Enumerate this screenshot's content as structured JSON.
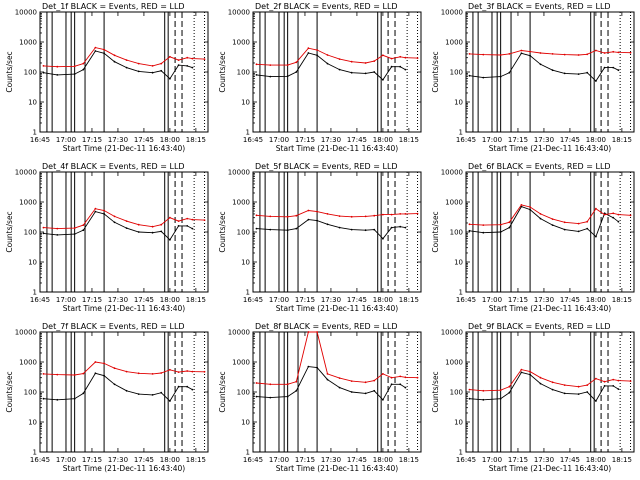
{
  "chart_data": [
    {
      "type": "line",
      "title": "Det_1f BLACK = Events, RED = LLD",
      "xlabel": "Start Time (21-Dec-11 16:43:40)",
      "ylabel": "Counts/sec",
      "yscale": "log",
      "ylim": [
        1,
        10000
      ],
      "xlim": [
        "16:45",
        "18:22"
      ],
      "xticks": [
        "16:45",
        "17:00",
        "17:15",
        "17:30",
        "17:45",
        "18:00",
        "18:15"
      ],
      "yticks": [
        "1",
        "10",
        "100",
        "1000",
        "10000"
      ],
      "series": [
        {
          "color": "#000000",
          "x": [
            "16:47",
            "16:55",
            "17:05",
            "17:10",
            "17:17",
            "17:22",
            "17:28",
            "17:35",
            "17:42",
            "17:50",
            "17:55",
            "18:00",
            "18:05",
            "18:10",
            "18:13"
          ],
          "y": [
            95,
            80,
            85,
            120,
            500,
            420,
            220,
            140,
            105,
            95,
            110,
            60,
            170,
            160,
            140
          ]
        },
        {
          "color": "#e00000",
          "x": [
            "16:47",
            "16:55",
            "17:05",
            "17:10",
            "17:17",
            "17:22",
            "17:28",
            "17:35",
            "17:42",
            "17:50",
            "17:55",
            "18:00",
            "18:05",
            "18:10",
            "18:13",
            "18:20"
          ],
          "y": [
            160,
            150,
            155,
            190,
            650,
            560,
            360,
            250,
            190,
            160,
            190,
            320,
            250,
            300,
            280,
            270
          ]
        }
      ]
    },
    {
      "type": "line",
      "title": "Det_2f BLACK = Events, RED = LLD",
      "xlabel": "Start Time (21-Dec-11 16:43:40)",
      "ylabel": "Counts/sec",
      "yscale": "log",
      "ylim": [
        1,
        10000
      ],
      "xlim": [
        "16:45",
        "18:22"
      ],
      "xticks": [
        "16:45",
        "17:00",
        "17:15",
        "17:30",
        "17:45",
        "18:00",
        "18:15"
      ],
      "yticks": [
        "1",
        "10",
        "100",
        "1000",
        "10000"
      ],
      "series": [
        {
          "color": "#000000",
          "x": [
            "16:47",
            "16:55",
            "17:05",
            "17:10",
            "17:17",
            "17:22",
            "17:28",
            "17:35",
            "17:42",
            "17:50",
            "17:55",
            "18:00",
            "18:05",
            "18:10",
            "18:13"
          ],
          "y": [
            80,
            70,
            72,
            100,
            430,
            360,
            190,
            120,
            95,
            90,
            100,
            55,
            150,
            150,
            120
          ]
        },
        {
          "color": "#e00000",
          "x": [
            "16:47",
            "16:55",
            "17:05",
            "17:10",
            "17:17",
            "17:22",
            "17:28",
            "17:35",
            "17:42",
            "17:50",
            "17:55",
            "18:00",
            "18:05",
            "18:10",
            "18:13",
            "18:20"
          ],
          "y": [
            180,
            170,
            170,
            210,
            620,
            540,
            370,
            270,
            220,
            200,
            230,
            360,
            280,
            320,
            300,
            290
          ]
        }
      ]
    },
    {
      "type": "line",
      "title": "Det_3f BLACK = Events, RED = LLD",
      "xlabel": "Start Time (21-Dec-11 16:43:40)",
      "ylabel": "Counts/sec",
      "yscale": "log",
      "ylim": [
        1,
        10000
      ],
      "xlim": [
        "16:45",
        "18:22"
      ],
      "xticks": [
        "16:45",
        "17:00",
        "17:15",
        "17:30",
        "17:45",
        "18:00",
        "18:15"
      ],
      "yticks": [
        "1",
        "10",
        "100",
        "1000",
        "10000"
      ],
      "series": [
        {
          "color": "#000000",
          "x": [
            "16:47",
            "16:55",
            "17:05",
            "17:10",
            "17:17",
            "17:22",
            "17:28",
            "17:35",
            "17:42",
            "17:50",
            "17:55",
            "18:00",
            "18:05",
            "18:10",
            "18:13"
          ],
          "y": [
            75,
            65,
            70,
            95,
            420,
            350,
            180,
            115,
            90,
            85,
            95,
            50,
            140,
            140,
            115
          ]
        },
        {
          "color": "#e00000",
          "x": [
            "16:47",
            "16:55",
            "17:05",
            "17:10",
            "17:17",
            "17:22",
            "17:28",
            "17:35",
            "17:42",
            "17:50",
            "17:55",
            "18:00",
            "18:05",
            "18:10",
            "18:13",
            "18:20"
          ],
          "y": [
            400,
            380,
            370,
            400,
            520,
            480,
            430,
            400,
            380,
            370,
            390,
            520,
            430,
            470,
            450,
            440
          ]
        }
      ]
    },
    {
      "type": "line",
      "title": "Det_4f BLACK = Events, RED = LLD",
      "xlabel": "Start Time (21-Dec-11 16:43:40)",
      "ylabel": "Counts/sec",
      "yscale": "log",
      "ylim": [
        1,
        10000
      ],
      "xlim": [
        "16:45",
        "18:22"
      ],
      "xticks": [
        "16:45",
        "17:00",
        "17:15",
        "17:30",
        "17:45",
        "18:00",
        "18:15"
      ],
      "yticks": [
        "1",
        "10",
        "100",
        "1000",
        "10000"
      ],
      "series": [
        {
          "color": "#000000",
          "x": [
            "16:47",
            "16:55",
            "17:05",
            "17:10",
            "17:17",
            "17:22",
            "17:28",
            "17:35",
            "17:42",
            "17:50",
            "17:55",
            "18:00",
            "18:05",
            "18:10",
            "18:13"
          ],
          "y": [
            90,
            80,
            85,
            115,
            480,
            400,
            210,
            135,
            100,
            95,
            105,
            55,
            160,
            160,
            130
          ]
        },
        {
          "color": "#e00000",
          "x": [
            "16:47",
            "16:55",
            "17:05",
            "17:10",
            "17:17",
            "17:22",
            "17:28",
            "17:35",
            "17:42",
            "17:50",
            "17:55",
            "18:00",
            "18:05",
            "18:10",
            "18:13",
            "18:20"
          ],
          "y": [
            140,
            130,
            135,
            170,
            600,
            520,
            330,
            230,
            175,
            150,
            175,
            300,
            230,
            280,
            260,
            250
          ]
        }
      ]
    },
    {
      "type": "line",
      "title": "Det_5f BLACK = Events, RED = LLD",
      "xlabel": "Start Time (21-Dec-11 16:43:40)",
      "ylabel": "Counts/sec",
      "yscale": "log",
      "ylim": [
        1,
        10000
      ],
      "xlim": [
        "16:45",
        "18:22"
      ],
      "xticks": [
        "16:45",
        "17:00",
        "17:15",
        "17:30",
        "17:45",
        "18:00",
        "18:15"
      ],
      "yticks": [
        "1",
        "10",
        "100",
        "1000",
        "10000"
      ],
      "series": [
        {
          "color": "#000000",
          "x": [
            "16:47",
            "16:55",
            "17:05",
            "17:10",
            "17:17",
            "17:22",
            "17:28",
            "17:35",
            "17:42",
            "17:50",
            "17:55",
            "18:00",
            "18:05",
            "18:10",
            "18:13"
          ],
          "y": [
            130,
            120,
            115,
            130,
            260,
            240,
            180,
            140,
            120,
            115,
            120,
            60,
            140,
            150,
            140
          ]
        },
        {
          "color": "#e00000",
          "x": [
            "16:47",
            "16:55",
            "17:05",
            "17:10",
            "17:17",
            "17:22",
            "17:28",
            "17:35",
            "17:42",
            "17:50",
            "17:55",
            "18:00",
            "18:05",
            "18:10",
            "18:13",
            "18:20"
          ],
          "y": [
            360,
            330,
            320,
            350,
            520,
            480,
            400,
            340,
            320,
            330,
            350,
            380,
            380,
            400,
            400,
            410
          ]
        }
      ]
    },
    {
      "type": "line",
      "title": "Det_6f BLACK = Events, RED = LLD",
      "xlabel": "Start Time (21-Dec-11 16:43:40)",
      "ylabel": "Counts/sec",
      "yscale": "log",
      "ylim": [
        1,
        10000
      ],
      "xlim": [
        "16:45",
        "18:22"
      ],
      "xticks": [
        "16:45",
        "17:00",
        "17:15",
        "17:30",
        "17:45",
        "18:00",
        "18:15"
      ],
      "yticks": [
        "1",
        "10",
        "100",
        "1000",
        "10000"
      ],
      "series": [
        {
          "color": "#000000",
          "x": [
            "16:47",
            "16:55",
            "17:05",
            "17:10",
            "17:17",
            "17:22",
            "17:28",
            "17:35",
            "17:42",
            "17:50",
            "17:55",
            "18:00",
            "18:05",
            "18:10",
            "18:13"
          ],
          "y": [
            110,
            95,
            100,
            140,
            700,
            560,
            280,
            170,
            120,
            105,
            130,
            70,
            420,
            300,
            220
          ]
        },
        {
          "color": "#e00000",
          "x": [
            "16:47",
            "16:55",
            "17:05",
            "17:10",
            "17:17",
            "17:22",
            "17:28",
            "17:35",
            "17:42",
            "17:50",
            "17:55",
            "18:00",
            "18:05",
            "18:10",
            "18:13",
            "18:20"
          ],
          "y": [
            180,
            170,
            175,
            210,
            800,
            680,
            400,
            270,
            210,
            190,
            220,
            600,
            380,
            420,
            380,
            360
          ]
        }
      ]
    },
    {
      "type": "line",
      "title": "Det_7f BLACK = Events, RED = LLD",
      "xlabel": "Start Time (21-Dec-11 16:43:40)",
      "ylabel": "Counts/sec",
      "yscale": "log",
      "ylim": [
        1,
        10000
      ],
      "xlim": [
        "16:45",
        "18:22"
      ],
      "xticks": [
        "16:45",
        "17:00",
        "17:15",
        "17:30",
        "17:45",
        "18:00",
        "18:15"
      ],
      "yticks": [
        "1",
        "10",
        "100",
        "1000",
        "10000"
      ],
      "series": [
        {
          "color": "#000000",
          "x": [
            "16:47",
            "16:55",
            "17:05",
            "17:10",
            "17:17",
            "17:22",
            "17:28",
            "17:35",
            "17:42",
            "17:50",
            "17:55",
            "18:00",
            "18:05",
            "18:10",
            "18:13"
          ],
          "y": [
            60,
            55,
            60,
            90,
            420,
            350,
            180,
            110,
            85,
            80,
            95,
            50,
            150,
            150,
            120
          ]
        },
        {
          "color": "#e00000",
          "x": [
            "16:47",
            "16:55",
            "17:05",
            "17:10",
            "17:17",
            "17:22",
            "17:28",
            "17:35",
            "17:42",
            "17:50",
            "17:55",
            "18:00",
            "18:05",
            "18:10",
            "18:13",
            "18:20"
          ],
          "y": [
            400,
            380,
            370,
            410,
            1000,
            900,
            620,
            480,
            420,
            400,
            430,
            550,
            460,
            500,
            480,
            470
          ]
        }
      ]
    },
    {
      "type": "line",
      "title": "Det_8f BLACK = Events, RED = LLD",
      "xlabel": "Start Time (21-Dec-11 16:43:40)",
      "ylabel": "Counts/sec",
      "yscale": "log",
      "ylim": [
        1,
        10000
      ],
      "xlim": [
        "16:45",
        "18:22"
      ],
      "xticks": [
        "16:45",
        "17:00",
        "17:15",
        "17:30",
        "17:45",
        "18:00",
        "18:15"
      ],
      "yticks": [
        "1",
        "10",
        "100",
        "1000",
        "10000"
      ],
      "series": [
        {
          "color": "#000000",
          "x": [
            "16:47",
            "16:55",
            "17:05",
            "17:10",
            "17:17",
            "17:22",
            "17:28",
            "17:35",
            "17:42",
            "17:50",
            "17:55",
            "18:00",
            "18:05",
            "18:10",
            "18:13"
          ],
          "y": [
            70,
            65,
            70,
            110,
            700,
            650,
            260,
            140,
            100,
            90,
            110,
            55,
            180,
            180,
            140
          ]
        },
        {
          "color": "#e00000",
          "x": [
            "16:47",
            "16:55",
            "17:05",
            "17:10",
            "17:17",
            "17:22",
            "17:28",
            "17:35",
            "17:42",
            "17:50",
            "17:55",
            "18:00",
            "18:05",
            "18:10",
            "18:13",
            "18:20"
          ],
          "y": [
            200,
            180,
            180,
            220,
            10000,
            10000,
            400,
            290,
            230,
            210,
            240,
            400,
            300,
            330,
            310,
            300
          ]
        }
      ]
    },
    {
      "type": "line",
      "title": "Det_9f BLACK = Events, RED = LLD",
      "xlabel": "Start Time (21-Dec-11 16:43:40)",
      "ylabel": "Counts/sec",
      "yscale": "log",
      "ylim": [
        1,
        10000
      ],
      "xlim": [
        "16:45",
        "18:22"
      ],
      "xticks": [
        "16:45",
        "17:00",
        "17:15",
        "17:30",
        "17:45",
        "18:00",
        "18:15"
      ],
      "yticks": [
        "1",
        "10",
        "100",
        "1000",
        "10000"
      ],
      "series": [
        {
          "color": "#000000",
          "x": [
            "16:47",
            "16:55",
            "17:05",
            "17:10",
            "17:17",
            "17:22",
            "17:28",
            "17:35",
            "17:42",
            "17:50",
            "17:55",
            "18:00",
            "18:05",
            "18:10",
            "18:13"
          ],
          "y": [
            60,
            55,
            60,
            95,
            450,
            380,
            190,
            120,
            90,
            85,
            100,
            50,
            160,
            160,
            125
          ]
        },
        {
          "color": "#e00000",
          "x": [
            "16:47",
            "16:55",
            "17:05",
            "17:10",
            "17:17",
            "17:22",
            "17:28",
            "17:35",
            "17:42",
            "17:50",
            "17:55",
            "18:00",
            "18:05",
            "18:10",
            "18:13",
            "18:20"
          ],
          "y": [
            120,
            110,
            115,
            150,
            560,
            480,
            300,
            210,
            170,
            150,
            170,
            280,
            220,
            260,
            240,
            230
          ]
        }
      ]
    }
  ],
  "event_markers": {
    "solid": [
      "16:49",
      "16:52",
      "17:00",
      "17:03",
      "17:05",
      "17:11",
      "17:22",
      "17:57",
      "17:59"
    ],
    "dashed": [
      "18:03",
      "18:07"
    ],
    "dotted": [
      "18:14",
      "18:20"
    ]
  }
}
